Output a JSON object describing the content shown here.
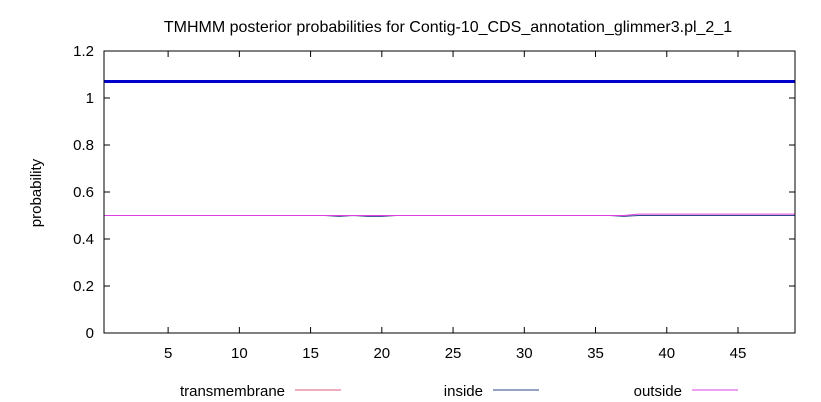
{
  "chart_data": {
    "type": "line",
    "title": "TMHMM posterior probabilities for Contig-10_CDS_annotation_glimmer3.pl_2_1",
    "xlabel": "",
    "ylabel": "probability",
    "xlim": [
      0.5,
      49
    ],
    "ylim": [
      0,
      1.2
    ],
    "x_ticks": [
      5,
      10,
      15,
      20,
      25,
      30,
      35,
      40,
      45
    ],
    "y_ticks": [
      0,
      0.2,
      0.4,
      0.6,
      0.8,
      1,
      1.2
    ],
    "y_tick_labels": [
      "0",
      "0.2",
      "0.4",
      "0.6",
      "0.8",
      "1",
      "1.2"
    ],
    "grid": false,
    "legend_position": "bottom",
    "series": [
      {
        "name": "transmembrane",
        "color": "#e05a78",
        "x": [
          0.5,
          49
        ],
        "values": [
          0,
          0
        ]
      },
      {
        "name": "inside",
        "color": "#2b4a8a",
        "x": [
          0.5,
          16,
          17,
          18,
          19,
          20,
          21,
          36,
          37,
          38,
          49
        ],
        "values": [
          0.5,
          0.5,
          0.496,
          0.5,
          0.496,
          0.496,
          0.5,
          0.5,
          0.496,
          0.5,
          0.5
        ]
      },
      {
        "name": "outside",
        "color": "#e040e0",
        "x": [
          0.5,
          37,
          38,
          49
        ],
        "values": [
          0.5,
          0.5,
          0.506,
          0.506
        ]
      }
    ],
    "annotations": [
      {
        "kind": "horizontal-line",
        "y": 1.07,
        "color": "#0000cc"
      }
    ]
  }
}
